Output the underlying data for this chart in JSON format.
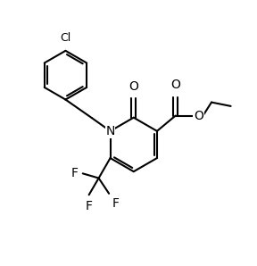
{
  "bg_color": "#ffffff",
  "line_color": "#000000",
  "line_width": 1.5,
  "font_size": 8.5,
  "figsize": [
    2.88,
    2.98
  ],
  "dpi": 100,
  "xlim": [
    0,
    10
  ],
  "ylim": [
    0,
    10
  ]
}
